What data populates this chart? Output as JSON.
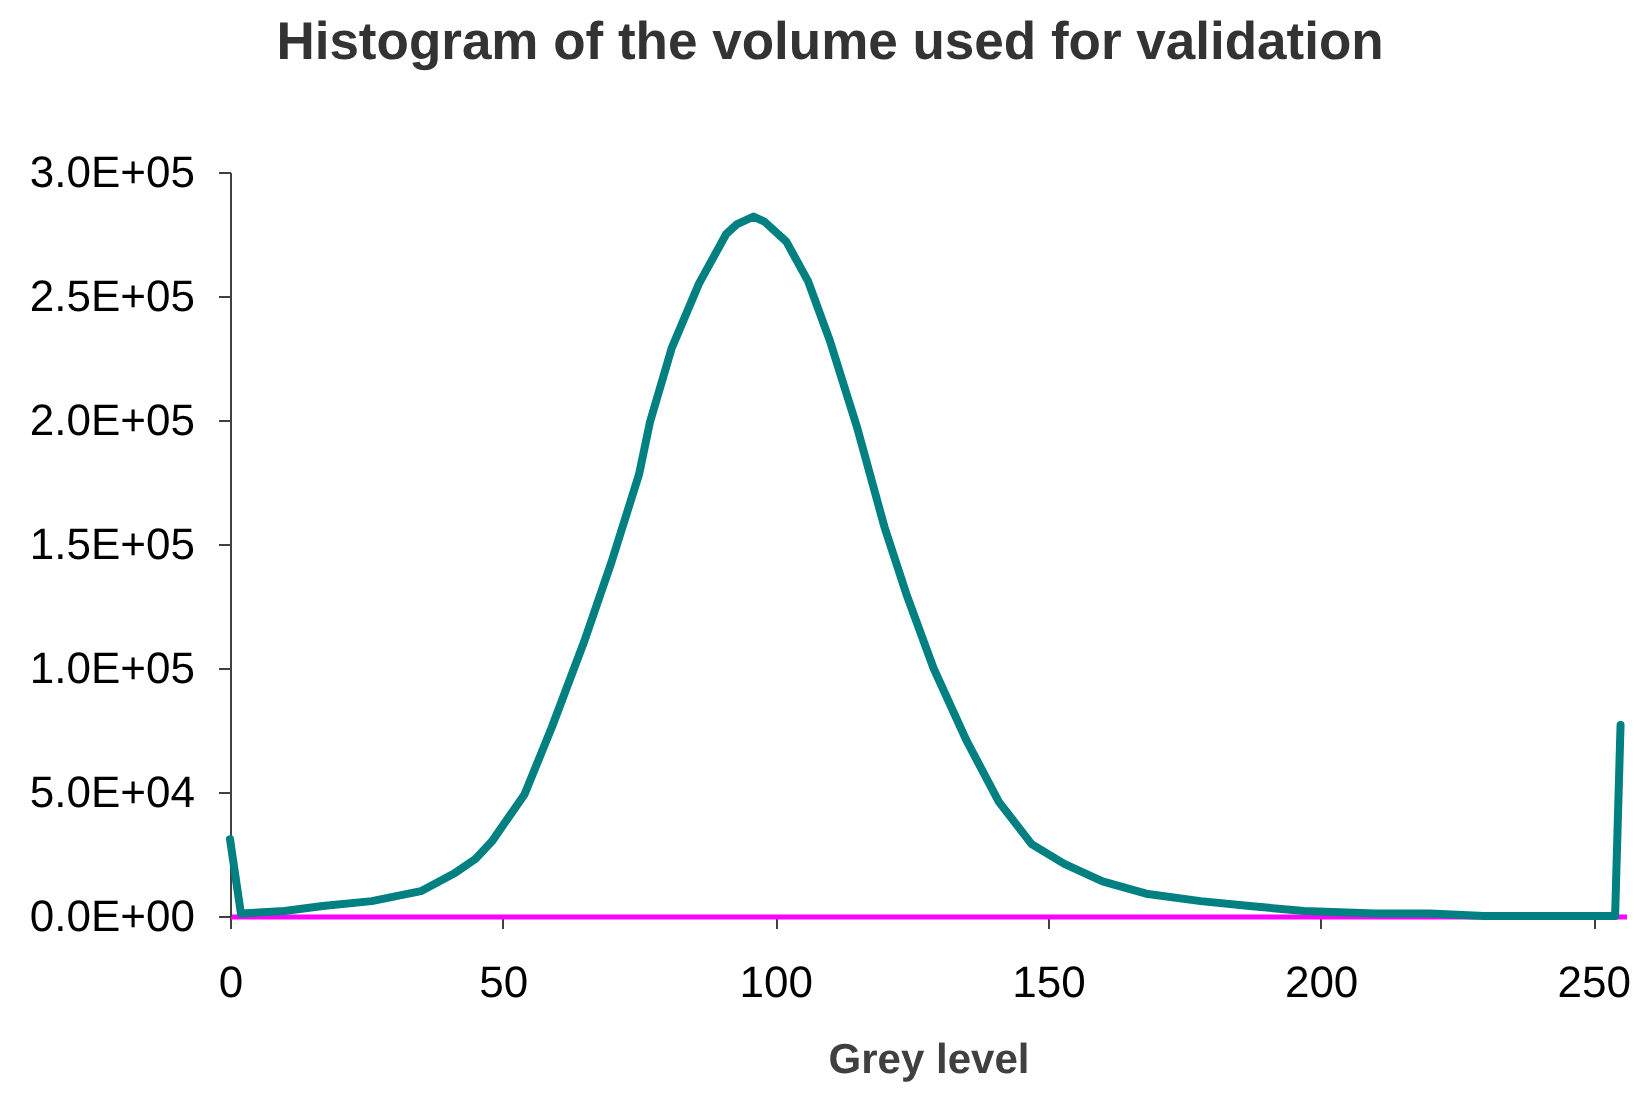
{
  "chart_data": {
    "type": "line",
    "title": "Histogram of the volume used for validation",
    "xlabel": "Grey level",
    "x": [
      0,
      2,
      10,
      17,
      26,
      35,
      41,
      45,
      48,
      54,
      59,
      65,
      70,
      75,
      77,
      81,
      86,
      91,
      93,
      96,
      98,
      102,
      106,
      110,
      115,
      120,
      124,
      129,
      135,
      141,
      147,
      153,
      160,
      168,
      178,
      187,
      197,
      210,
      220,
      230,
      240,
      254,
      255
    ],
    "series": [
      {
        "color": "#008080",
        "values": [
          31000,
          1000,
          2000,
          4000,
          6000,
          10000,
          17000,
          23000,
          30000,
          49000,
          76000,
          111000,
          143000,
          178000,
          199000,
          229000,
          255000,
          275000,
          279000,
          282000,
          280000,
          272000,
          256000,
          232000,
          197000,
          157000,
          130000,
          100000,
          71000,
          46000,
          29000,
          21000,
          14000,
          9000,
          6000,
          4000,
          2000,
          1000,
          1000,
          0,
          0,
          0,
          77000
        ]
      }
    ],
    "xlim": [
      0,
      256
    ],
    "xticks": [
      0,
      50,
      100,
      150,
      200,
      250
    ],
    "ylim": [
      0,
      300000
    ],
    "yticks": [
      {
        "value": 0,
        "label": "0.0E+00"
      },
      {
        "value": 50000,
        "label": "5.0E+04"
      },
      {
        "value": 100000,
        "label": "1.0E+05"
      },
      {
        "value": 150000,
        "label": "1.5E+05"
      },
      {
        "value": 200000,
        "label": "2.0E+05"
      },
      {
        "value": 250000,
        "label": "2.5E+05"
      },
      {
        "value": 300000,
        "label": "3.0E+05"
      }
    ]
  }
}
